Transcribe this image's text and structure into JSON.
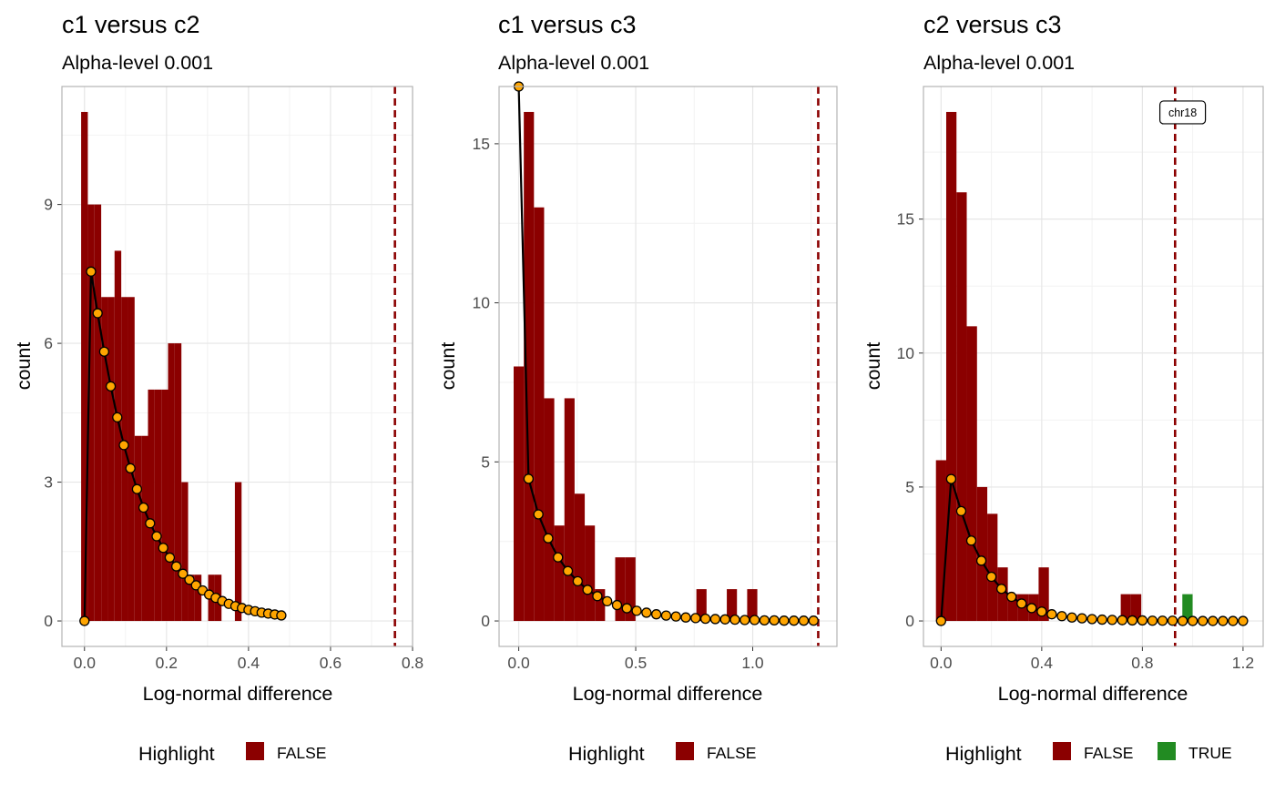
{
  "colors": {
    "bar_false": "#8B0000",
    "bar_true": "#228B22",
    "curve": "#000000",
    "point_fill": "#FFA500",
    "threshold": "#8B0000",
    "grid": "#e6e6e6",
    "panel_border": "#b3b3b3"
  },
  "chart_data": [
    {
      "type": "bar",
      "title": "c1 versus c2",
      "subtitle": "Alpha-level 0.001",
      "xlabel": "Log-normal difference",
      "ylabel": "count",
      "xlim": [
        -0.055,
        0.8
      ],
      "ylim": [
        -0.55,
        11.55
      ],
      "xticks": [
        0.0,
        0.2,
        0.4,
        0.6,
        0.8
      ],
      "xtick_labels": [
        "0.0",
        "0.2",
        "0.4",
        "0.6",
        "0.8"
      ],
      "yticks": [
        0,
        3,
        6,
        9
      ],
      "ytick_labels": [
        "0",
        "3",
        "6",
        "9"
      ],
      "grid": true,
      "bin_width": 0.0163,
      "bins": [
        {
          "x": 0.0,
          "count": 11,
          "highlight": false
        },
        {
          "x": 0.0163,
          "count": 9,
          "highlight": false
        },
        {
          "x": 0.0326,
          "count": 9,
          "highlight": false
        },
        {
          "x": 0.0489,
          "count": 7,
          "highlight": false
        },
        {
          "x": 0.0652,
          "count": 7,
          "highlight": false
        },
        {
          "x": 0.0815,
          "count": 8,
          "highlight": false
        },
        {
          "x": 0.0978,
          "count": 7,
          "highlight": false
        },
        {
          "x": 0.1141,
          "count": 7,
          "highlight": false
        },
        {
          "x": 0.1304,
          "count": 4,
          "highlight": false
        },
        {
          "x": 0.1467,
          "count": 4,
          "highlight": false
        },
        {
          "x": 0.163,
          "count": 5,
          "highlight": false
        },
        {
          "x": 0.1793,
          "count": 5,
          "highlight": false
        },
        {
          "x": 0.1956,
          "count": 5,
          "highlight": false
        },
        {
          "x": 0.2119,
          "count": 6,
          "highlight": false
        },
        {
          "x": 0.2282,
          "count": 6,
          "highlight": false
        },
        {
          "x": 0.2445,
          "count": 3,
          "highlight": false
        },
        {
          "x": 0.2608,
          "count": 1,
          "highlight": false
        },
        {
          "x": 0.2771,
          "count": 1,
          "highlight": false
        },
        {
          "x": 0.3097,
          "count": 1,
          "highlight": false
        },
        {
          "x": 0.326,
          "count": 1,
          "highlight": false
        },
        {
          "x": 0.3749,
          "count": 3,
          "highlight": false
        }
      ],
      "curve_x": [
        0.0,
        0.016,
        0.032,
        0.048,
        0.064,
        0.08,
        0.096,
        0.112,
        0.128,
        0.144,
        0.16,
        0.176,
        0.192,
        0.208,
        0.224,
        0.24,
        0.256,
        0.272,
        0.288,
        0.304,
        0.32,
        0.336,
        0.352,
        0.368,
        0.384,
        0.4,
        0.416,
        0.432,
        0.448,
        0.464,
        0.48
      ],
      "curve_y": [
        0.0,
        7.55,
        6.65,
        5.82,
        5.07,
        4.4,
        3.8,
        3.3,
        2.85,
        2.45,
        2.11,
        1.83,
        1.58,
        1.37,
        1.18,
        1.02,
        0.89,
        0.77,
        0.66,
        0.57,
        0.5,
        0.43,
        0.37,
        0.32,
        0.28,
        0.24,
        0.21,
        0.18,
        0.16,
        0.14,
        0.12
      ],
      "threshold": 0.757,
      "label": null,
      "legend": {
        "title": "Highlight",
        "items": [
          {
            "label": "FALSE",
            "color": "#8B0000"
          }
        ]
      }
    },
    {
      "type": "bar",
      "title": "c1 versus c3",
      "subtitle": "Alpha-level 0.001",
      "xlabel": "Log-normal difference",
      "ylabel": "count",
      "xlim": [
        -0.084,
        1.36
      ],
      "ylim": [
        -0.8,
        16.8
      ],
      "xticks": [
        0.0,
        0.5,
        1.0
      ],
      "xtick_labels": [
        "0.0",
        "0.5",
        "1.0"
      ],
      "yticks": [
        0,
        5,
        10,
        15
      ],
      "ytick_labels": [
        "0",
        "5",
        "10",
        "15"
      ],
      "grid": true,
      "bin_width": 0.0434,
      "bins": [
        {
          "x": 0.0,
          "count": 8,
          "highlight": false
        },
        {
          "x": 0.0434,
          "count": 16,
          "highlight": false
        },
        {
          "x": 0.0868,
          "count": 13,
          "highlight": false
        },
        {
          "x": 0.1302,
          "count": 7,
          "highlight": false
        },
        {
          "x": 0.1736,
          "count": 3,
          "highlight": false
        },
        {
          "x": 0.217,
          "count": 7,
          "highlight": false
        },
        {
          "x": 0.2604,
          "count": 4,
          "highlight": false
        },
        {
          "x": 0.3038,
          "count": 3,
          "highlight": false
        },
        {
          "x": 0.3472,
          "count": 1,
          "highlight": false
        },
        {
          "x": 0.434,
          "count": 2,
          "highlight": false
        },
        {
          "x": 0.4774,
          "count": 2,
          "highlight": false
        },
        {
          "x": 0.781,
          "count": 1,
          "highlight": false
        },
        {
          "x": 0.911,
          "count": 1,
          "highlight": false
        },
        {
          "x": 0.998,
          "count": 1,
          "highlight": false
        }
      ],
      "curve_x": [
        0.0,
        0.042,
        0.084,
        0.126,
        0.168,
        0.21,
        0.252,
        0.294,
        0.336,
        0.378,
        0.42,
        0.462,
        0.504,
        0.546,
        0.588,
        0.63,
        0.672,
        0.714,
        0.756,
        0.798,
        0.84,
        0.882,
        0.924,
        0.966,
        1.008,
        1.05,
        1.092,
        1.134,
        1.176,
        1.218,
        1.26
      ],
      "curve_y": [
        16.8,
        4.47,
        3.35,
        2.6,
        2.0,
        1.57,
        1.25,
        0.98,
        0.78,
        0.62,
        0.5,
        0.4,
        0.32,
        0.26,
        0.21,
        0.17,
        0.14,
        0.11,
        0.09,
        0.07,
        0.06,
        0.05,
        0.04,
        0.03,
        0.03,
        0.02,
        0.02,
        0.01,
        0.01,
        0.01,
        0.01
      ],
      "threshold": 1.28,
      "label": null,
      "legend": {
        "title": "Highlight",
        "items": [
          {
            "label": "FALSE",
            "color": "#8B0000"
          }
        ]
      }
    },
    {
      "type": "bar",
      "title": "c2 versus c3",
      "subtitle": "Alpha-level 0.001",
      "xlabel": "Log-normal difference",
      "ylabel": "count",
      "xlim": [
        -0.07,
        1.28
      ],
      "ylim": [
        -0.95,
        19.95
      ],
      "xticks": [
        0.0,
        0.4,
        0.8,
        1.2
      ],
      "xtick_labels": [
        "0.0",
        "0.4",
        "0.8",
        "1.2"
      ],
      "yticks": [
        0,
        5,
        10,
        15
      ],
      "ytick_labels": [
        "0",
        "5",
        "10",
        "15"
      ],
      "grid": true,
      "bin_width": 0.0408,
      "bins": [
        {
          "x": 0.0,
          "count": 6,
          "highlight": false
        },
        {
          "x": 0.0408,
          "count": 19,
          "highlight": false
        },
        {
          "x": 0.0816,
          "count": 16,
          "highlight": false
        },
        {
          "x": 0.1224,
          "count": 11,
          "highlight": false
        },
        {
          "x": 0.1632,
          "count": 5,
          "highlight": false
        },
        {
          "x": 0.204,
          "count": 4,
          "highlight": false
        },
        {
          "x": 0.2448,
          "count": 2,
          "highlight": false
        },
        {
          "x": 0.2856,
          "count": 1,
          "highlight": false
        },
        {
          "x": 0.3264,
          "count": 1,
          "highlight": false
        },
        {
          "x": 0.3672,
          "count": 1,
          "highlight": false
        },
        {
          "x": 0.408,
          "count": 2,
          "highlight": false
        },
        {
          "x": 0.7344,
          "count": 1,
          "highlight": false
        },
        {
          "x": 0.7752,
          "count": 1,
          "highlight": false
        },
        {
          "x": 0.9792,
          "count": 1,
          "highlight": true
        }
      ],
      "curve_x": [
        0.0,
        0.04,
        0.08,
        0.12,
        0.16,
        0.2,
        0.24,
        0.28,
        0.32,
        0.36,
        0.4,
        0.44,
        0.48,
        0.52,
        0.56,
        0.6,
        0.64,
        0.68,
        0.72,
        0.76,
        0.8,
        0.84,
        0.88,
        0.92,
        0.96,
        1.0,
        1.04,
        1.08,
        1.12,
        1.16,
        1.2
      ],
      "curve_y": [
        0.0,
        5.3,
        4.1,
        3.0,
        2.25,
        1.65,
        1.2,
        0.9,
        0.65,
        0.48,
        0.35,
        0.25,
        0.18,
        0.13,
        0.1,
        0.07,
        0.05,
        0.04,
        0.03,
        0.02,
        0.02,
        0.01,
        0.01,
        0.01,
        0.0,
        0.0,
        0.0,
        0.0,
        0.0,
        0.0,
        0.0
      ],
      "threshold": 0.93,
      "label": {
        "text": "chr18",
        "x": 0.96,
        "y": 19.0
      },
      "legend": {
        "title": "Highlight",
        "items": [
          {
            "label": "FALSE",
            "color": "#8B0000"
          },
          {
            "label": "TRUE",
            "color": "#228B22"
          }
        ]
      }
    }
  ]
}
